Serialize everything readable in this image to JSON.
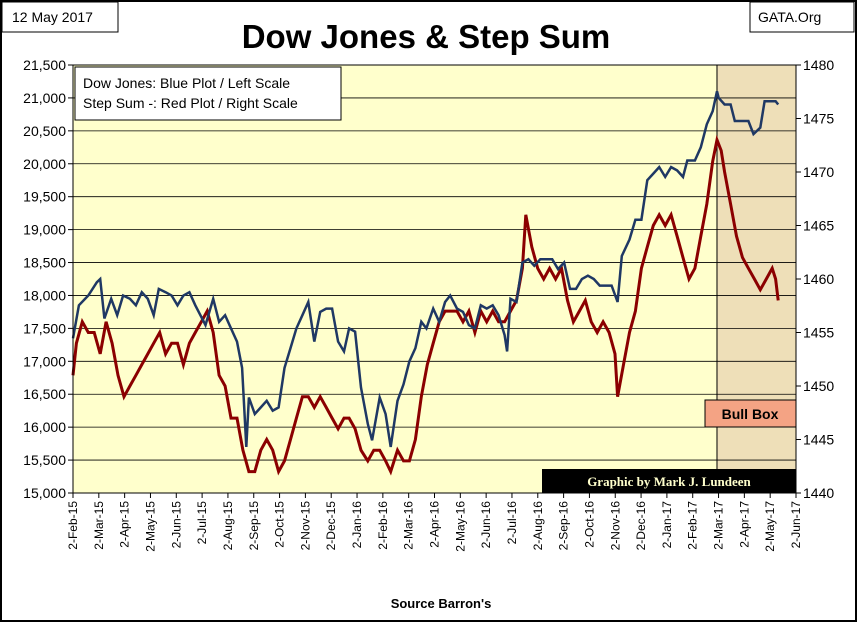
{
  "header": {
    "date": "12 May 2017",
    "source_tag": "GATA.Org",
    "title": "Dow Jones & Step Sum"
  },
  "legend": {
    "line1": "Dow Jones: Blue Plot / Left Scale",
    "line2": "Step Sum -: Red Plot / Right Scale"
  },
  "annotations": {
    "bull_box": "Bull Box",
    "credit": "Graphic by Mark J. Lundeen",
    "source": "Source Barron's"
  },
  "colors": {
    "plot_bg": "#FFFFCC",
    "bull_box_fill": "#EEDFB8",
    "dow": "#1F3864",
    "step_sum": "#8B0000",
    "bull_label_bg": "#F4A384",
    "credit_bg": "#000000",
    "credit_text": "#FFFFCC"
  },
  "chart_data": {
    "type": "line",
    "title": "Dow Jones & Step Sum",
    "x_start": "2015-02-02",
    "x_end": "2017-06-02",
    "x_tick_labels": [
      "2-Feb-15",
      "2-Mar-15",
      "2-Apr-15",
      "2-May-15",
      "2-Jun-15",
      "2-Jul-15",
      "2-Aug-15",
      "2-Sep-15",
      "2-Oct-15",
      "2-Nov-15",
      "2-Dec-15",
      "2-Jan-16",
      "2-Feb-16",
      "2-Mar-16",
      "2-Apr-16",
      "2-May-16",
      "2-Jun-16",
      "2-Jul-16",
      "2-Aug-16",
      "2-Sep-16",
      "2-Oct-16",
      "2-Nov-16",
      "2-Dec-16",
      "2-Jan-17",
      "2-Feb-17",
      "2-Mar-17",
      "2-Apr-17",
      "2-May-17",
      "2-Jun-17"
    ],
    "left_axis": {
      "min": 15000,
      "max": 21500,
      "ticks": [
        "15,000",
        "15,500",
        "16,000",
        "16,500",
        "17,000",
        "17,500",
        "18,000",
        "18,500",
        "19,000",
        "19,500",
        "20,000",
        "20,500",
        "21,000",
        "21,500"
      ]
    },
    "right_axis": {
      "min": 1440,
      "max": 1480,
      "ticks": [
        "1440",
        "1445",
        "1450",
        "1455",
        "1460",
        "1465",
        "1470",
        "1475",
        "1480"
      ]
    },
    "bull_box": {
      "from": "2017-03-01",
      "to": "2017-06-02"
    },
    "series": [
      {
        "name": "Dow Jones",
        "axis": "left",
        "points": [
          [
            "2015-02-02",
            17350
          ],
          [
            "2015-02-09",
            17850
          ],
          [
            "2015-02-20",
            18000
          ],
          [
            "2015-03-02",
            18200
          ],
          [
            "2015-03-06",
            18250
          ],
          [
            "2015-03-11",
            17650
          ],
          [
            "2015-03-19",
            17950
          ],
          [
            "2015-03-26",
            17700
          ],
          [
            "2015-04-02",
            18000
          ],
          [
            "2015-04-10",
            17950
          ],
          [
            "2015-04-17",
            17850
          ],
          [
            "2015-04-24",
            18050
          ],
          [
            "2015-05-01",
            17950
          ],
          [
            "2015-05-08",
            17700
          ],
          [
            "2015-05-14",
            18100
          ],
          [
            "2015-05-22",
            18050
          ],
          [
            "2015-05-29",
            18000
          ],
          [
            "2015-06-05",
            17850
          ],
          [
            "2015-06-12",
            18000
          ],
          [
            "2015-06-19",
            18050
          ],
          [
            "2015-06-26",
            17850
          ],
          [
            "2015-07-02",
            17700
          ],
          [
            "2015-07-08",
            17550
          ],
          [
            "2015-07-17",
            17950
          ],
          [
            "2015-07-24",
            17600
          ],
          [
            "2015-07-31",
            17700
          ],
          [
            "2015-08-07",
            17500
          ],
          [
            "2015-08-14",
            17300
          ],
          [
            "2015-08-20",
            16900
          ],
          [
            "2015-08-25",
            15700
          ],
          [
            "2015-08-28",
            16450
          ],
          [
            "2015-09-04",
            16200
          ],
          [
            "2015-09-11",
            16300
          ],
          [
            "2015-09-18",
            16400
          ],
          [
            "2015-09-25",
            16250
          ],
          [
            "2015-10-02",
            16300
          ],
          [
            "2015-10-09",
            16900
          ],
          [
            "2015-10-16",
            17200
          ],
          [
            "2015-10-23",
            17500
          ],
          [
            "2015-10-30",
            17700
          ],
          [
            "2015-11-06",
            17900
          ],
          [
            "2015-11-13",
            17300
          ],
          [
            "2015-11-20",
            17750
          ],
          [
            "2015-11-27",
            17800
          ],
          [
            "2015-12-04",
            17800
          ],
          [
            "2015-12-11",
            17300
          ],
          [
            "2015-12-18",
            17150
          ],
          [
            "2015-12-24",
            17500
          ],
          [
            "2015-12-31",
            17450
          ],
          [
            "2016-01-07",
            16600
          ],
          [
            "2016-01-15",
            16050
          ],
          [
            "2016-01-20",
            15800
          ],
          [
            "2016-01-29",
            16450
          ],
          [
            "2016-02-05",
            16200
          ],
          [
            "2016-02-11",
            15700
          ],
          [
            "2016-02-19",
            16400
          ],
          [
            "2016-02-26",
            16650
          ],
          [
            "2016-03-04",
            17000
          ],
          [
            "2016-03-11",
            17200
          ],
          [
            "2016-03-18",
            17600
          ],
          [
            "2016-03-24",
            17500
          ],
          [
            "2016-04-01",
            17800
          ],
          [
            "2016-04-08",
            17600
          ],
          [
            "2016-04-15",
            17900
          ],
          [
            "2016-04-21",
            18000
          ],
          [
            "2016-04-29",
            17800
          ],
          [
            "2016-05-06",
            17750
          ],
          [
            "2016-05-13",
            17550
          ],
          [
            "2016-05-20",
            17500
          ],
          [
            "2016-05-27",
            17850
          ],
          [
            "2016-06-03",
            17800
          ],
          [
            "2016-06-10",
            17850
          ],
          [
            "2016-06-17",
            17700
          ],
          [
            "2016-06-24",
            17400
          ],
          [
            "2016-06-27",
            17150
          ],
          [
            "2016-07-01",
            17950
          ],
          [
            "2016-07-08",
            17900
          ],
          [
            "2016-07-15",
            18500
          ],
          [
            "2016-07-22",
            18550
          ],
          [
            "2016-07-29",
            18450
          ],
          [
            "2016-08-05",
            18550
          ],
          [
            "2016-08-12",
            18550
          ],
          [
            "2016-08-19",
            18550
          ],
          [
            "2016-08-26",
            18400
          ],
          [
            "2016-09-02",
            18500
          ],
          [
            "2016-09-09",
            18100
          ],
          [
            "2016-09-16",
            18100
          ],
          [
            "2016-09-23",
            18250
          ],
          [
            "2016-09-30",
            18300
          ],
          [
            "2016-10-07",
            18250
          ],
          [
            "2016-10-14",
            18150
          ],
          [
            "2016-10-21",
            18150
          ],
          [
            "2016-10-28",
            18150
          ],
          [
            "2016-11-04",
            17900
          ],
          [
            "2016-11-09",
            18600
          ],
          [
            "2016-11-18",
            18850
          ],
          [
            "2016-11-25",
            19150
          ],
          [
            "2016-12-02",
            19150
          ],
          [
            "2016-12-09",
            19750
          ],
          [
            "2016-12-16",
            19850
          ],
          [
            "2016-12-23",
            19950
          ],
          [
            "2016-12-30",
            19800
          ],
          [
            "2017-01-06",
            19950
          ],
          [
            "2017-01-13",
            19900
          ],
          [
            "2017-01-20",
            19800
          ],
          [
            "2017-01-25",
            20050
          ],
          [
            "2017-02-03",
            20050
          ],
          [
            "2017-02-10",
            20250
          ],
          [
            "2017-02-17",
            20600
          ],
          [
            "2017-02-24",
            20800
          ],
          [
            "2017-03-01",
            21100
          ],
          [
            "2017-03-03",
            21000
          ],
          [
            "2017-03-10",
            20900
          ],
          [
            "2017-03-17",
            20900
          ],
          [
            "2017-03-22",
            20650
          ],
          [
            "2017-03-31",
            20650
          ],
          [
            "2017-04-07",
            20650
          ],
          [
            "2017-04-13",
            20450
          ],
          [
            "2017-04-21",
            20550
          ],
          [
            "2017-04-26",
            20950
          ],
          [
            "2017-05-03",
            20950
          ],
          [
            "2017-05-09",
            20950
          ],
          [
            "2017-05-12",
            20900
          ]
        ]
      },
      {
        "name": "Step Sum",
        "axis": "right",
        "points": [
          [
            "2015-02-02",
            1451
          ],
          [
            "2015-02-06",
            1454
          ],
          [
            "2015-02-13",
            1456
          ],
          [
            "2015-02-20",
            1455
          ],
          [
            "2015-02-27",
            1455
          ],
          [
            "2015-03-06",
            1453
          ],
          [
            "2015-03-13",
            1456
          ],
          [
            "2015-03-20",
            1454
          ],
          [
            "2015-03-27",
            1451
          ],
          [
            "2015-04-03",
            1449
          ],
          [
            "2015-04-10",
            1450
          ],
          [
            "2015-04-17",
            1451
          ],
          [
            "2015-04-24",
            1452
          ],
          [
            "2015-05-01",
            1453
          ],
          [
            "2015-05-08",
            1454
          ],
          [
            "2015-05-15",
            1455
          ],
          [
            "2015-05-22",
            1453
          ],
          [
            "2015-05-29",
            1454
          ],
          [
            "2015-06-05",
            1454
          ],
          [
            "2015-06-12",
            1452
          ],
          [
            "2015-06-19",
            1454
          ],
          [
            "2015-06-26",
            1455
          ],
          [
            "2015-07-03",
            1456
          ],
          [
            "2015-07-10",
            1457
          ],
          [
            "2015-07-17",
            1455
          ],
          [
            "2015-07-24",
            1451
          ],
          [
            "2015-07-31",
            1450
          ],
          [
            "2015-08-07",
            1447
          ],
          [
            "2015-08-14",
            1447
          ],
          [
            "2015-08-21",
            1444
          ],
          [
            "2015-08-28",
            1442
          ],
          [
            "2015-09-04",
            1442
          ],
          [
            "2015-09-11",
            1444
          ],
          [
            "2015-09-18",
            1445
          ],
          [
            "2015-09-25",
            1444
          ],
          [
            "2015-10-02",
            1442
          ],
          [
            "2015-10-09",
            1443
          ],
          [
            "2015-10-16",
            1445
          ],
          [
            "2015-10-23",
            1447
          ],
          [
            "2015-10-30",
            1449
          ],
          [
            "2015-11-06",
            1449
          ],
          [
            "2015-11-13",
            1448
          ],
          [
            "2015-11-20",
            1449
          ],
          [
            "2015-11-27",
            1448
          ],
          [
            "2015-12-04",
            1447
          ],
          [
            "2015-12-11",
            1446
          ],
          [
            "2015-12-18",
            1447
          ],
          [
            "2015-12-24",
            1447
          ],
          [
            "2015-12-31",
            1446
          ],
          [
            "2016-01-07",
            1444
          ],
          [
            "2016-01-15",
            1443
          ],
          [
            "2016-01-22",
            1444
          ],
          [
            "2016-01-29",
            1444
          ],
          [
            "2016-02-05",
            1443
          ],
          [
            "2016-02-11",
            1442
          ],
          [
            "2016-02-19",
            1444
          ],
          [
            "2016-02-26",
            1443
          ],
          [
            "2016-03-04",
            1443
          ],
          [
            "2016-03-11",
            1445
          ],
          [
            "2016-03-18",
            1449
          ],
          [
            "2016-03-25",
            1452
          ],
          [
            "2016-04-01",
            1454
          ],
          [
            "2016-04-08",
            1456
          ],
          [
            "2016-04-15",
            1457
          ],
          [
            "2016-04-22",
            1457
          ],
          [
            "2016-04-29",
            1457
          ],
          [
            "2016-05-06",
            1456
          ],
          [
            "2016-05-13",
            1457
          ],
          [
            "2016-05-20",
            1455
          ],
          [
            "2016-05-27",
            1457
          ],
          [
            "2016-06-03",
            1456
          ],
          [
            "2016-06-10",
            1457
          ],
          [
            "2016-06-17",
            1456
          ],
          [
            "2016-06-24",
            1456
          ],
          [
            "2016-07-01",
            1457
          ],
          [
            "2016-07-08",
            1458
          ],
          [
            "2016-07-15",
            1461
          ],
          [
            "2016-07-19",
            1466
          ],
          [
            "2016-07-26",
            1463
          ],
          [
            "2016-08-02",
            1461
          ],
          [
            "2016-08-09",
            1460
          ],
          [
            "2016-08-16",
            1461
          ],
          [
            "2016-08-23",
            1460
          ],
          [
            "2016-08-30",
            1461
          ],
          [
            "2016-09-06",
            1458
          ],
          [
            "2016-09-13",
            1456
          ],
          [
            "2016-09-20",
            1457
          ],
          [
            "2016-09-27",
            1458
          ],
          [
            "2016-10-04",
            1456
          ],
          [
            "2016-10-11",
            1455
          ],
          [
            "2016-10-18",
            1456
          ],
          [
            "2016-10-25",
            1455
          ],
          [
            "2016-11-01",
            1453
          ],
          [
            "2016-11-04",
            1449
          ],
          [
            "2016-11-11",
            1452
          ],
          [
            "2016-11-18",
            1455
          ],
          [
            "2016-11-25",
            1457
          ],
          [
            "2016-12-02",
            1461
          ],
          [
            "2016-12-09",
            1463
          ],
          [
            "2016-12-16",
            1465
          ],
          [
            "2016-12-23",
            1466
          ],
          [
            "2016-12-30",
            1465
          ],
          [
            "2017-01-06",
            1466
          ],
          [
            "2017-01-13",
            1464
          ],
          [
            "2017-01-20",
            1462
          ],
          [
            "2017-01-27",
            1460
          ],
          [
            "2017-02-03",
            1461
          ],
          [
            "2017-02-10",
            1464
          ],
          [
            "2017-02-17",
            1467
          ],
          [
            "2017-02-24",
            1471
          ],
          [
            "2017-03-01",
            1473
          ],
          [
            "2017-03-06",
            1472
          ],
          [
            "2017-03-10",
            1470
          ],
          [
            "2017-03-17",
            1467
          ],
          [
            "2017-03-24",
            1464
          ],
          [
            "2017-03-31",
            1462
          ],
          [
            "2017-04-07",
            1461
          ],
          [
            "2017-04-14",
            1460
          ],
          [
            "2017-04-21",
            1459
          ],
          [
            "2017-04-28",
            1460
          ],
          [
            "2017-05-05",
            1461
          ],
          [
            "2017-05-09",
            1460
          ],
          [
            "2017-05-12",
            1458
          ]
        ]
      }
    ]
  }
}
